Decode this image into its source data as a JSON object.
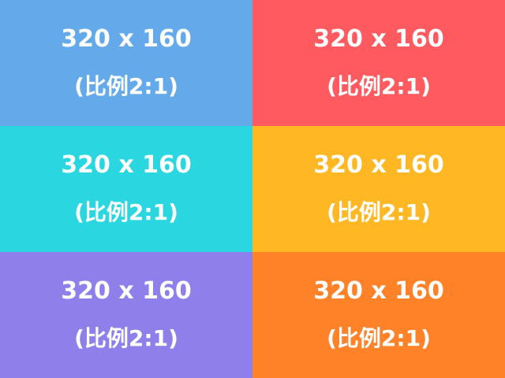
{
  "tiles": [
    {
      "size": "320 x 160",
      "ratio": "(比例2:1)",
      "color": "#64aaeb"
    },
    {
      "size": "320 x 160",
      "ratio": "(比例2:1)",
      "color": "#ff5a5f"
    },
    {
      "size": "320 x 160",
      "ratio": "(比例2:1)",
      "color": "#2ad6df"
    },
    {
      "size": "320 x 160",
      "ratio": "(比例2:1)",
      "color": "#ffb823"
    },
    {
      "size": "320 x 160",
      "ratio": "(比例2:1)",
      "color": "#8e7fea"
    },
    {
      "size": "320 x 160",
      "ratio": "(比例2:1)",
      "color": "#ff8228"
    }
  ]
}
